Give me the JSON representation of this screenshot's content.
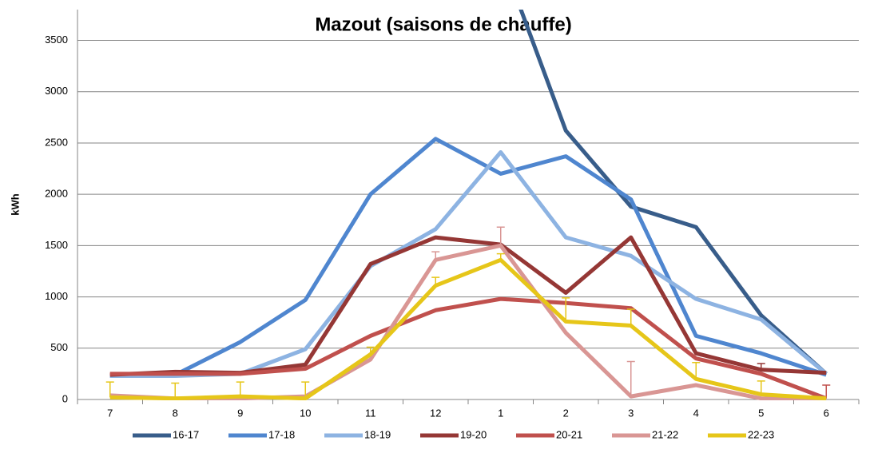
{
  "chart_data": {
    "type": "line",
    "title": "Mazout (saisons de chauffe)",
    "y_label": "kWh",
    "categories": [
      "7",
      "8",
      "9",
      "10",
      "11",
      "12",
      "1",
      "2",
      "3",
      "4",
      "5",
      "6"
    ],
    "ylim": [
      0,
      3800
    ],
    "yticks": [
      0,
      500,
      1000,
      1500,
      2000,
      2500,
      3000,
      3500
    ],
    "grid": true,
    "legend": "bottom",
    "series": [
      {
        "name": "16-17",
        "color": "#385d8a",
        "values": [
          null,
          null,
          null,
          null,
          null,
          null,
          4330,
          2620,
          1880,
          1680,
          820,
          250
        ]
      },
      {
        "name": "17-18",
        "color": "#4f86cf",
        "values": [
          230,
          240,
          560,
          970,
          2000,
          2540,
          2200,
          2370,
          1950,
          620,
          450,
          240
        ]
      },
      {
        "name": "18-19",
        "color": "#8db3e2",
        "values": [
          230,
          230,
          250,
          490,
          1300,
          1660,
          2410,
          1580,
          1400,
          980,
          780,
          250
        ]
      },
      {
        "name": "19-20",
        "color": "#953735",
        "values": [
          240,
          270,
          260,
          340,
          1320,
          1580,
          1510,
          1040,
          1580,
          450,
          290,
          260
        ],
        "errors": [
          null,
          null,
          null,
          null,
          null,
          null,
          null,
          null,
          null,
          null,
          60,
          null
        ]
      },
      {
        "name": "20-21",
        "color": "#c0504d",
        "values": [
          250,
          250,
          250,
          300,
          620,
          870,
          980,
          940,
          890,
          400,
          250,
          10
        ],
        "errors": [
          null,
          null,
          null,
          null,
          null,
          null,
          null,
          null,
          null,
          null,
          null,
          130
        ]
      },
      {
        "name": "21-22",
        "color": "#d99694",
        "values": [
          40,
          10,
          10,
          30,
          390,
          1360,
          1500,
          650,
          30,
          140,
          10,
          0
        ],
        "errors": [
          null,
          null,
          null,
          null,
          null,
          80,
          180,
          null,
          340,
          null,
          null,
          null
        ]
      },
      {
        "name": "22-23",
        "color": "#e6c619",
        "values": [
          20,
          10,
          30,
          10,
          440,
          1110,
          1360,
          760,
          720,
          200,
          50,
          10
        ],
        "errors": [
          150,
          150,
          140,
          160,
          70,
          80,
          60,
          230,
          160,
          160,
          130,
          null
        ]
      }
    ]
  }
}
